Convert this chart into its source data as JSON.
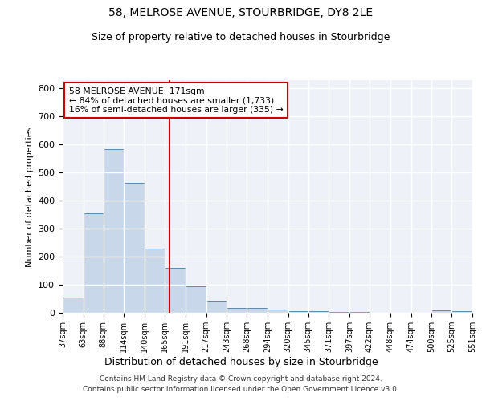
{
  "title": "58, MELROSE AVENUE, STOURBRIDGE, DY8 2LE",
  "subtitle": "Size of property relative to detached houses in Stourbridge",
  "xlabel": "Distribution of detached houses by size in Stourbridge",
  "ylabel": "Number of detached properties",
  "annotation_title": "58 MELROSE AVENUE: 171sqm",
  "annotation_line1": "← 84% of detached houses are smaller (1,733)",
  "annotation_line2": "16% of semi-detached houses are larger (335) →",
  "property_size": 171,
  "bin_edges": [
    37,
    63,
    88,
    114,
    140,
    165,
    191,
    217,
    243,
    268,
    294,
    320,
    345,
    371,
    397,
    422,
    448,
    474,
    500,
    525,
    551
  ],
  "bar_heights": [
    55,
    355,
    585,
    465,
    230,
    160,
    95,
    42,
    18,
    17,
    12,
    7,
    5,
    4,
    3,
    1,
    1,
    0,
    8,
    7
  ],
  "bar_color": "#c8d8ea",
  "bar_edge_color": "#5a8ab0",
  "vline_color": "#cc0000",
  "vline_x": 171,
  "annotation_box_color": "#cc0000",
  "background_color": "#eef2f8",
  "grid_color": "#ffffff",
  "ylim": [
    0,
    830
  ],
  "yticks": [
    0,
    100,
    200,
    300,
    400,
    500,
    600,
    700,
    800
  ],
  "footer_line1": "Contains HM Land Registry data © Crown copyright and database right 2024.",
  "footer_line2": "Contains public sector information licensed under the Open Government Licence v3.0."
}
